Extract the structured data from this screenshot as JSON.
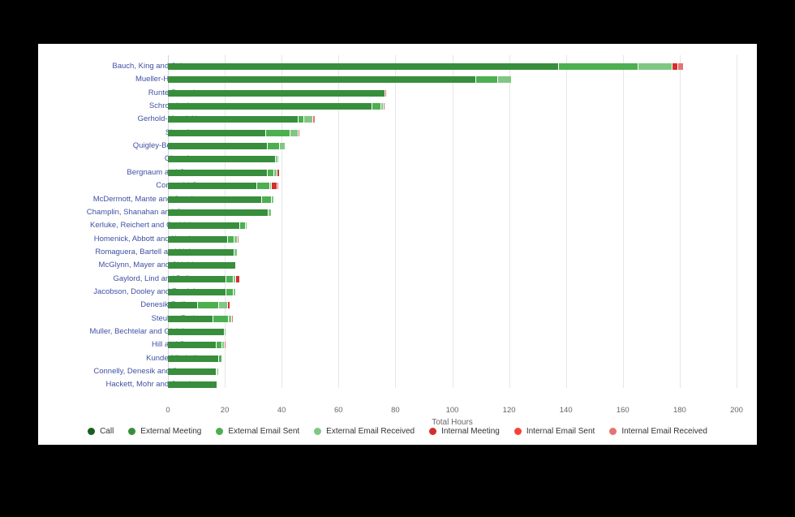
{
  "chart_data": {
    "type": "bar",
    "orientation": "horizontal",
    "stacked": true,
    "title": "",
    "xlabel": "Total Hours",
    "ylabel": "",
    "xlim": [
      0,
      200
    ],
    "xticks": [
      0,
      20,
      40,
      60,
      80,
      100,
      120,
      140,
      160,
      180,
      200
    ],
    "grid": true,
    "legend_position": "bottom",
    "categories": [
      "Bauch, King and Schoen",
      "Mueller-Hartmann",
      "Runte-Paucek",
      "Schroeder Inc",
      "Gerhold-Mosciski",
      "Sipes Inc",
      "Quigley-Bergstrom",
      "Olson Inc",
      "Bergnaum and Sons",
      "Conroy LLC",
      "McDermott, Mante and Cassin",
      "Champlin, Shanahan and Carter",
      "Kerluke, Reichert and Ondricka",
      "Homenick, Abbott and Kessler",
      "Romaguera, Bartell and Hahn",
      "McGlynn, Mayer and Shields",
      "Gaylord, Lind and Bailey",
      "Jacobson, Dooley and Zemlak",
      "Denesik-Rolfson",
      "Steuber-Rath",
      "Muller, Bechtelar and Gleichner",
      "Hill and Sons",
      "Kunde-Mitchell",
      "Connelly, Denesik and Senger",
      "Hackett, Mohr and Stracke"
    ],
    "series": [
      {
        "name": "Call",
        "color": "#1b5e20",
        "values": [
          0,
          0,
          0,
          0,
          0,
          0,
          0,
          0,
          0,
          0,
          0,
          0,
          0,
          0,
          0,
          0,
          0,
          0,
          0,
          0,
          0,
          0,
          0,
          0,
          0
        ]
      },
      {
        "name": "External Meeting",
        "color": "#388e3c",
        "values": [
          137.5,
          108.5,
          76.5,
          72,
          46,
          34.5,
          35,
          38,
          35,
          31.5,
          33,
          35.5,
          25.5,
          21,
          23.5,
          24,
          20.5,
          20.5,
          10.5,
          16,
          20,
          17,
          18,
          17,
          17.5
        ]
      },
      {
        "name": "External Email Sent",
        "color": "#4caf50",
        "values": [
          28,
          7.5,
          0,
          3,
          2,
          8.5,
          4.5,
          0.5,
          2.5,
          4.5,
          3.5,
          0,
          2,
          2.5,
          0,
          0,
          2.5,
          2.5,
          7.5,
          5.5,
          0,
          2,
          1,
          0.5,
          0
        ]
      },
      {
        "name": "External Email Received",
        "color": "#81c784",
        "values": [
          12,
          5,
          0,
          1,
          3,
          3,
          2,
          0.5,
          1,
          0.5,
          1,
          1,
          0.5,
          1,
          1,
          0,
          1,
          1,
          3,
          1,
          0.5,
          1,
          0.5,
          0.5,
          0
        ]
      },
      {
        "name": "Internal Meeting",
        "color": "#d32f2f",
        "values": [
          2,
          0,
          0,
          0,
          0,
          0,
          0,
          0,
          1,
          2,
          0,
          0,
          0,
          0,
          0,
          0,
          1.5,
          0,
          1,
          0,
          0,
          0,
          0,
          0,
          0
        ]
      },
      {
        "name": "Internal Email Sent",
        "color": "#f44336",
        "values": [
          0,
          0,
          0,
          0,
          0,
          0,
          0,
          0,
          0,
          0,
          0,
          0,
          0,
          0,
          0,
          0,
          0,
          0,
          0,
          0,
          0,
          0,
          0,
          0,
          0
        ]
      },
      {
        "name": "Internal Email Received",
        "color": "#e57373",
        "values": [
          2,
          0,
          0.5,
          0.5,
          1,
          0.5,
          0,
          0,
          0,
          0.5,
          0,
          0,
          0,
          0.5,
          0,
          0,
          0,
          0,
          0,
          0.5,
          0,
          0.5,
          0,
          0,
          0
        ]
      }
    ]
  }
}
